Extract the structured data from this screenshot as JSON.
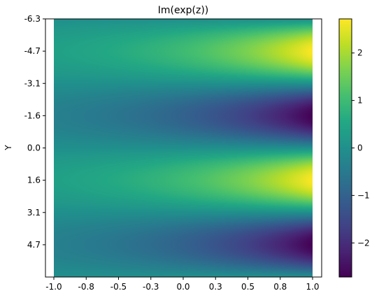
{
  "chart_data": {
    "type": "heatmap",
    "title": "Im(exp(z))",
    "xlabel": "",
    "ylabel": "Y",
    "function": "imag(exp(x + i*y))",
    "xlim": [
      -1.0,
      1.0
    ],
    "ylim_top_to_bottom": [
      -6.3,
      6.3
    ],
    "x_tick_values": [
      -1.0,
      -0.75,
      -0.5,
      -0.25,
      0.0,
      0.25,
      0.5,
      0.75,
      1.0
    ],
    "x_tick_labels": [
      "-1.0",
      "-0.8",
      "-0.5",
      "-0.3",
      "0.0",
      "0.3",
      "0.5",
      "0.8",
      "1.0"
    ],
    "y_tick_values": [
      -6.3,
      -4.725,
      -3.15,
      -1.575,
      0.0,
      1.575,
      3.15,
      4.725
    ],
    "y_tick_labels": [
      "-6.3",
      "-4.7",
      "-3.1",
      "-1.6",
      "0.0",
      "1.6",
      "3.1",
      "4.7"
    ],
    "colormap": "viridis",
    "colorbar": {
      "vmin": -2.718,
      "vmax": 2.718,
      "ticks": [
        2,
        1,
        0,
        -1,
        -2
      ],
      "tick_labels": [
        "2",
        "1",
        "0",
        "−1",
        "−2"
      ]
    },
    "grid": false,
    "legend": "none"
  }
}
